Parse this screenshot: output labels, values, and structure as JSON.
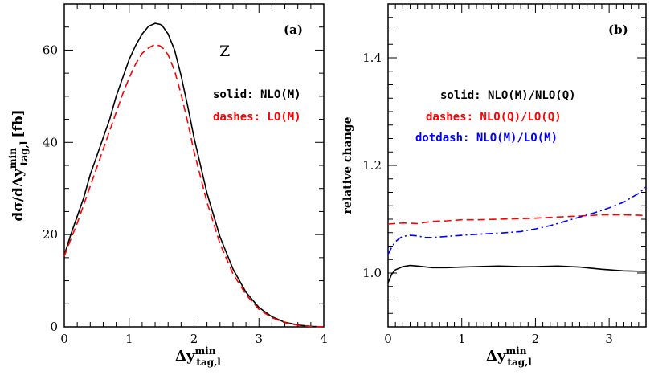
{
  "chart_data": [
    {
      "type": "line",
      "panel_label": "(a)",
      "process_label": "Z",
      "ylabel": "dσ/dΔy",
      "ylabel_sup": "min",
      "ylabel_sub": "tag,l",
      "ylabel_unit": "[fb]",
      "xlabel": "Δy",
      "xlabel_sup": "min",
      "xlabel_sub": "tag,l",
      "xlim": [
        0,
        4
      ],
      "ylim": [
        0,
        70
      ],
      "xticks": [
        "0",
        "1",
        "2",
        "3",
        "4"
      ],
      "yticks": [
        "0",
        "20",
        "40",
        "60"
      ],
      "annotations": [
        {
          "text": "solid: NLO(M)",
          "color": "#000000"
        },
        {
          "text": "dashes: LO(M)",
          "color": "#ff0000"
        }
      ],
      "series": [
        {
          "name": "NLO(M)",
          "style": "solid",
          "color": "#000000",
          "x": [
            0.0,
            0.1,
            0.2,
            0.3,
            0.4,
            0.5,
            0.6,
            0.7,
            0.8,
            0.9,
            1.0,
            1.1,
            1.2,
            1.3,
            1.4,
            1.5,
            1.6,
            1.7,
            1.8,
            1.9,
            2.0,
            2.2,
            2.4,
            2.6,
            2.8,
            3.0,
            3.2,
            3.4,
            3.6,
            3.8,
            4.0
          ],
          "y": [
            15.5,
            20,
            24,
            28,
            33,
            37,
            41,
            45,
            50,
            54,
            58,
            61,
            63.5,
            65.2,
            65.8,
            65.5,
            63.5,
            60,
            54.5,
            48,
            41,
            29,
            19.5,
            12.5,
            7.5,
            4.2,
            2.2,
            1.0,
            0.4,
            0.1,
            0
          ]
        },
        {
          "name": "LO(M)",
          "style": "dashed",
          "color": "#ff0000",
          "x": [
            0.0,
            0.1,
            0.2,
            0.3,
            0.4,
            0.5,
            0.6,
            0.7,
            0.8,
            0.9,
            1.0,
            1.1,
            1.2,
            1.3,
            1.4,
            1.5,
            1.6,
            1.7,
            1.8,
            1.9,
            2.0,
            2.2,
            2.4,
            2.6,
            2.8,
            3.0,
            3.2,
            3.4,
            3.6,
            3.8,
            4.0
          ],
          "y": [
            15.3,
            19,
            22.5,
            26.5,
            30.5,
            34.5,
            38.5,
            42.5,
            46.5,
            50.5,
            54,
            57,
            59.3,
            60.5,
            61.2,
            60.8,
            59,
            55.5,
            50.5,
            44.5,
            38,
            27,
            18,
            11.5,
            7.0,
            3.8,
            2.0,
            0.9,
            0.35,
            0.1,
            0
          ]
        }
      ]
    },
    {
      "type": "line",
      "panel_label": "(b)",
      "ylabel": "relative change",
      "xlabel": "Δy",
      "xlabel_sup": "min",
      "xlabel_sub": "tag,l",
      "xlim": [
        0,
        3.5
      ],
      "ylim": [
        0.9,
        1.5
      ],
      "xticks": [
        "0",
        "1",
        "2",
        "3"
      ],
      "yticks": [
        "1.0",
        "1.2",
        "1.4"
      ],
      "annotations": [
        {
          "text": "solid: NLO(M)/NLO(Q)",
          "color": "#000000"
        },
        {
          "text": "dashes: NLO(Q)/LO(Q)",
          "color": "#ff0000"
        },
        {
          "text": "dotdash: NLO(M)/LO(M)",
          "color": "#0000ff"
        }
      ],
      "series": [
        {
          "name": "NLO(M)/NLO(Q)",
          "style": "solid",
          "color": "#000000",
          "x": [
            0.0,
            0.05,
            0.1,
            0.2,
            0.3,
            0.4,
            0.6,
            0.8,
            1.0,
            1.2,
            1.5,
            1.8,
            2.0,
            2.3,
            2.6,
            2.9,
            3.2,
            3.5
          ],
          "y": [
            0.982,
            0.998,
            1.006,
            1.012,
            1.014,
            1.013,
            1.01,
            1.01,
            1.011,
            1.012,
            1.013,
            1.012,
            1.012,
            1.013,
            1.011,
            1.007,
            1.004,
            1.003
          ]
        },
        {
          "name": "NLO(Q)/LO(Q)",
          "style": "dashed",
          "color": "#ff0000",
          "x": [
            0.0,
            0.2,
            0.4,
            0.6,
            0.8,
            1.0,
            1.2,
            1.5,
            1.8,
            2.0,
            2.3,
            2.6,
            2.9,
            3.2,
            3.5
          ],
          "y": [
            1.091,
            1.093,
            1.092,
            1.096,
            1.097,
            1.099,
            1.099,
            1.1,
            1.101,
            1.102,
            1.104,
            1.106,
            1.108,
            1.108,
            1.107
          ]
        },
        {
          "name": "NLO(M)/LO(M)",
          "style": "dotdash",
          "color": "#0000ff",
          "x": [
            0.0,
            0.05,
            0.1,
            0.15,
            0.2,
            0.3,
            0.4,
            0.5,
            0.6,
            0.8,
            1.0,
            1.2,
            1.5,
            1.8,
            2.0,
            2.2,
            2.4,
            2.6,
            2.8,
            3.0,
            3.2,
            3.4,
            3.5
          ],
          "y": [
            1.035,
            1.048,
            1.058,
            1.064,
            1.068,
            1.07,
            1.069,
            1.066,
            1.066,
            1.068,
            1.07,
            1.072,
            1.074,
            1.077,
            1.082,
            1.088,
            1.096,
            1.104,
            1.112,
            1.121,
            1.132,
            1.148,
            1.16
          ]
        }
      ]
    }
  ]
}
